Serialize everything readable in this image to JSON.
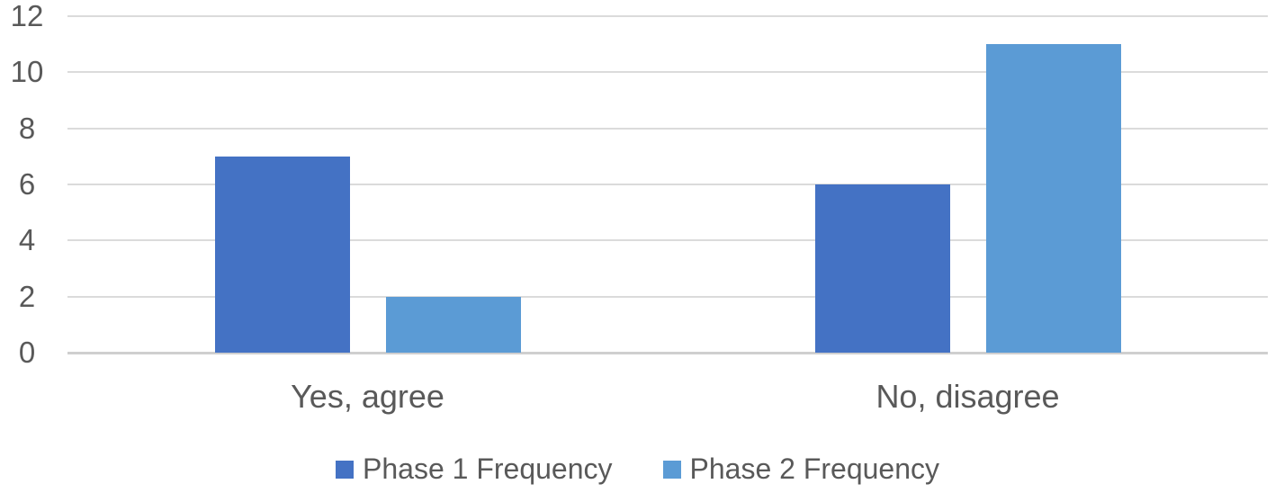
{
  "chart_data": {
    "type": "bar",
    "title": "",
    "xlabel": "",
    "ylabel": "",
    "categories": [
      "Yes, agree",
      "No, disagree"
    ],
    "series": [
      {
        "name": "Phase 1 Frequency",
        "color": "#4472C4",
        "values": [
          7,
          6
        ]
      },
      {
        "name": "Phase 2 Frequency",
        "color": "#5B9BD5",
        "values": [
          2,
          11
        ]
      }
    ],
    "ylim": [
      0,
      12
    ],
    "yticks": [
      0,
      2,
      4,
      6,
      8,
      10,
      12
    ],
    "grid": true,
    "legend_position": "bottom",
    "colors": {
      "gridline": "#DBDBDB",
      "axis_line": "#CFCFCF",
      "text": "#595959",
      "background": "#FFFFFF"
    }
  }
}
